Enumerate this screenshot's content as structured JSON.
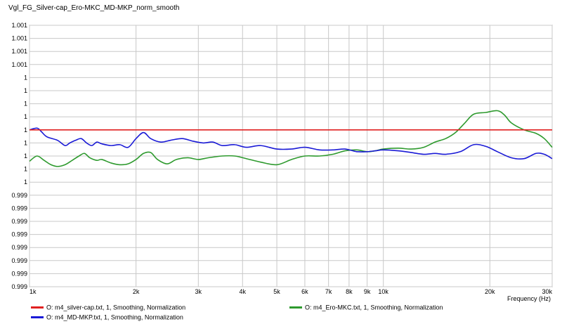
{
  "chart_data": {
    "type": "line",
    "title": "Vgl_FG_Silver-cap_Ero-MKC_MD-MKP_norm_smooth",
    "xlabel": "Frequency (Hz)",
    "xscale": "log",
    "xlim": [
      1000,
      30000
    ],
    "ylim": [
      0.9985,
      1.0015
    ],
    "x_ticks": [
      {
        "value": 1000,
        "label": "1k"
      },
      {
        "value": 2000,
        "label": "2k"
      },
      {
        "value": 3000,
        "label": "3k"
      },
      {
        "value": 4000,
        "label": "4k"
      },
      {
        "value": 5000,
        "label": "5k"
      },
      {
        "value": 6000,
        "label": "6k"
      },
      {
        "value": 7000,
        "label": "7k"
      },
      {
        "value": 8000,
        "label": "8k"
      },
      {
        "value": 9000,
        "label": "9k"
      },
      {
        "value": 10000,
        "label": "10k"
      },
      {
        "value": 20000,
        "label": "20k"
      },
      {
        "value": 30000,
        "label": "30k"
      }
    ],
    "y_ticks": [
      {
        "value": 1.0015,
        "label": "1.001"
      },
      {
        "value": 1.00135,
        "label": "1.001"
      },
      {
        "value": 1.0012,
        "label": "1.001"
      },
      {
        "value": 1.00105,
        "label": "1.001"
      },
      {
        "value": 1.0009,
        "label": "1"
      },
      {
        "value": 1.00075,
        "label": "1"
      },
      {
        "value": 1.0006,
        "label": "1"
      },
      {
        "value": 1.00045,
        "label": "1"
      },
      {
        "value": 1.0003,
        "label": "1"
      },
      {
        "value": 1.00015,
        "label": "1"
      },
      {
        "value": 1.0,
        "label": "1"
      },
      {
        "value": 0.99985,
        "label": "1"
      },
      {
        "value": 0.9997,
        "label": "1"
      },
      {
        "value": 0.99955,
        "label": "0.999"
      },
      {
        "value": 0.9994,
        "label": "0.999"
      },
      {
        "value": 0.99925,
        "label": "0.999"
      },
      {
        "value": 0.9991,
        "label": "0.999"
      },
      {
        "value": 0.99895,
        "label": "0.999"
      },
      {
        "value": 0.9988,
        "label": "0.999"
      },
      {
        "value": 0.99865,
        "label": "0.999"
      },
      {
        "value": 0.9985,
        "label": "0.999"
      }
    ],
    "grid": true,
    "legend_position": "bottom",
    "series": [
      {
        "name": "O: m4_silver-cap.txt, 1, Smoothing, Normalization",
        "color": "#e02020",
        "x": [
          1000,
          30000
        ],
        "y": [
          1.0003,
          1.0003
        ]
      },
      {
        "name": "O: m4_MD-MKP.txt, 1, Smoothing, Normalization",
        "color": "#1a1ad6",
        "x": [
          1000,
          1050,
          1080,
          1120,
          1200,
          1260,
          1300,
          1350,
          1400,
          1450,
          1500,
          1550,
          1600,
          1700,
          1800,
          1900,
          2000,
          2100,
          2200,
          2350,
          2500,
          2700,
          2900,
          3100,
          3300,
          3500,
          3800,
          4100,
          4500,
          5000,
          5500,
          6000,
          6600,
          7200,
          7800,
          8400,
          9000,
          9500,
          10000,
          11000,
          12000,
          13000,
          14000,
          15000,
          16500,
          18000,
          19500,
          21000,
          23000,
          25000,
          27000,
          28500,
          30000
        ],
        "y": [
          1.0003,
          1.00032,
          1.00028,
          1.00022,
          1.00018,
          1.00012,
          1.00015,
          1.00018,
          1.0002,
          1.00015,
          1.00012,
          1.00016,
          1.00014,
          1.00012,
          1.00013,
          1.0001,
          1.0002,
          1.00027,
          1.0002,
          1.00016,
          1.00018,
          1.0002,
          1.00017,
          1.00015,
          1.00016,
          1.00012,
          1.00013,
          1.0001,
          1.00012,
          1.00008,
          1.00008,
          1.0001,
          1.00007,
          1.00007,
          1.00008,
          1.00005,
          1.00005,
          1.00006,
          1.00007,
          1.00006,
          1.00004,
          1.00002,
          1.00003,
          1.00002,
          1.00005,
          1.00013,
          1.00011,
          1.00005,
          0.99998,
          0.99997,
          1.00003,
          1.00002,
          0.99997
        ]
      },
      {
        "name": "O: m4_Ero-MKC.txt, 1, Smoothing, Normalization",
        "color": "#2e9a2e",
        "x": [
          1000,
          1050,
          1100,
          1150,
          1200,
          1260,
          1320,
          1380,
          1430,
          1480,
          1550,
          1600,
          1700,
          1800,
          1900,
          2000,
          2100,
          2200,
          2300,
          2450,
          2600,
          2800,
          3000,
          3200,
          3500,
          3800,
          4100,
          4500,
          5000,
          5500,
          6000,
          6600,
          7200,
          7800,
          8400,
          9000,
          9500,
          10000,
          11000,
          12000,
          13000,
          14000,
          15000,
          16000,
          17000,
          18000,
          19500,
          21000,
          22000,
          23000,
          25000,
          27000,
          28500,
          30000
        ],
        "y": [
          0.99994,
          1.0,
          0.99995,
          0.9999,
          0.99988,
          0.9999,
          0.99995,
          1.0,
          1.00003,
          0.99998,
          0.99995,
          0.99996,
          0.99992,
          0.9999,
          0.99991,
          0.99996,
          1.00003,
          1.00004,
          0.99996,
          0.99991,
          0.99996,
          0.99998,
          0.99996,
          0.99998,
          1.0,
          1.0,
          0.99997,
          0.99993,
          0.9999,
          0.99996,
          1.0,
          1.0,
          1.00002,
          1.00006,
          1.00007,
          1.00005,
          1.00006,
          1.00008,
          1.00009,
          1.00008,
          1.0001,
          1.00016,
          1.0002,
          1.00027,
          1.00038,
          1.00048,
          1.0005,
          1.00052,
          1.00047,
          1.00038,
          1.0003,
          1.00026,
          1.0002,
          1.0001
        ]
      }
    ]
  }
}
